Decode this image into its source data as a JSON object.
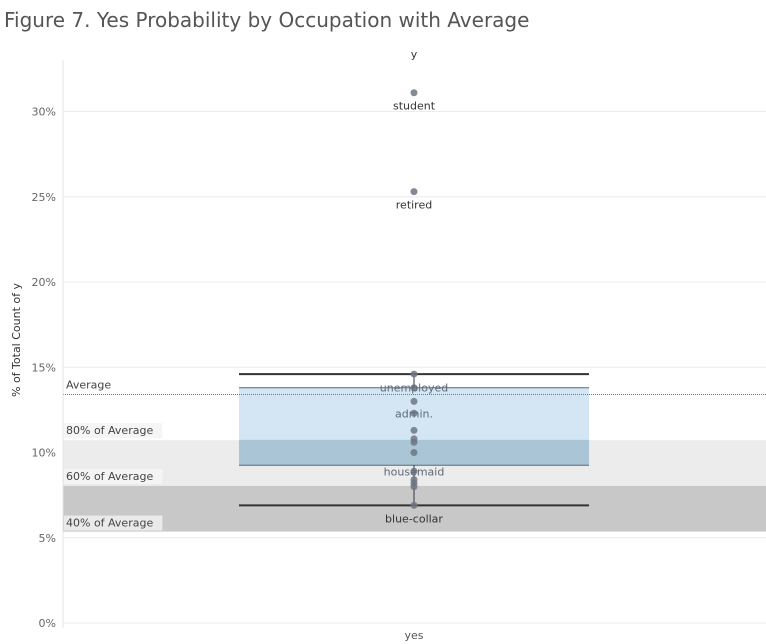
{
  "chart_data": {
    "type": "scatter",
    "title": "Figure 7. Yes Probability by Occupation with Average",
    "column_header": "y",
    "ylabel": "% of Total Count of y",
    "x_category": "yes",
    "ylim": [
      0,
      0.33
    ],
    "y_ticks": [
      "0%",
      "5%",
      "10%",
      "15%",
      "20%",
      "25%",
      "30%"
    ],
    "y_tick_values": [
      0,
      0.05,
      0.1,
      0.15,
      0.2,
      0.25,
      0.3
    ],
    "points": [
      {
        "label": "student",
        "value": 0.311
      },
      {
        "label": "retired",
        "value": 0.253
      },
      {
        "label": "",
        "value": 0.146
      },
      {
        "label": "unemployed",
        "value": 0.138
      },
      {
        "label": "",
        "value": 0.13
      },
      {
        "label": "admin.",
        "value": 0.123
      },
      {
        "label": "",
        "value": 0.113
      },
      {
        "label": "",
        "value": 0.108
      },
      {
        "label": "",
        "value": 0.106
      },
      {
        "label": "",
        "value": 0.1
      },
      {
        "label": "housemaid",
        "value": 0.089
      },
      {
        "label": "",
        "value": 0.084
      },
      {
        "label": "",
        "value": 0.082
      },
      {
        "label": "",
        "value": 0.08
      },
      {
        "label": "blue-collar",
        "value": 0.069
      }
    ],
    "box_plot": {
      "upper_whisker": 0.146,
      "q3": 0.138,
      "median": 0.1075,
      "q1": 0.0925,
      "lower_whisker": 0.069
    },
    "reference_line": {
      "label": "Average",
      "value": 0.134
    },
    "reference_bands": [
      {
        "label": "80% of Average",
        "from": 0.1072,
        "to": 0.134,
        "color": "#ffffff"
      },
      {
        "label": "60% of Average",
        "from": 0.0804,
        "to": 0.1072,
        "color": "#ececec"
      },
      {
        "label": "40% of Average",
        "from": 0.0536,
        "to": 0.0804,
        "color": "#c8c8c8"
      }
    ],
    "colors": {
      "point": "#6f7683",
      "box_upper": "#cfe3f3",
      "box_lower": "#a3c1d4",
      "whisker": "#333333",
      "gridline": "#ececec",
      "average_line": "#777777"
    }
  }
}
